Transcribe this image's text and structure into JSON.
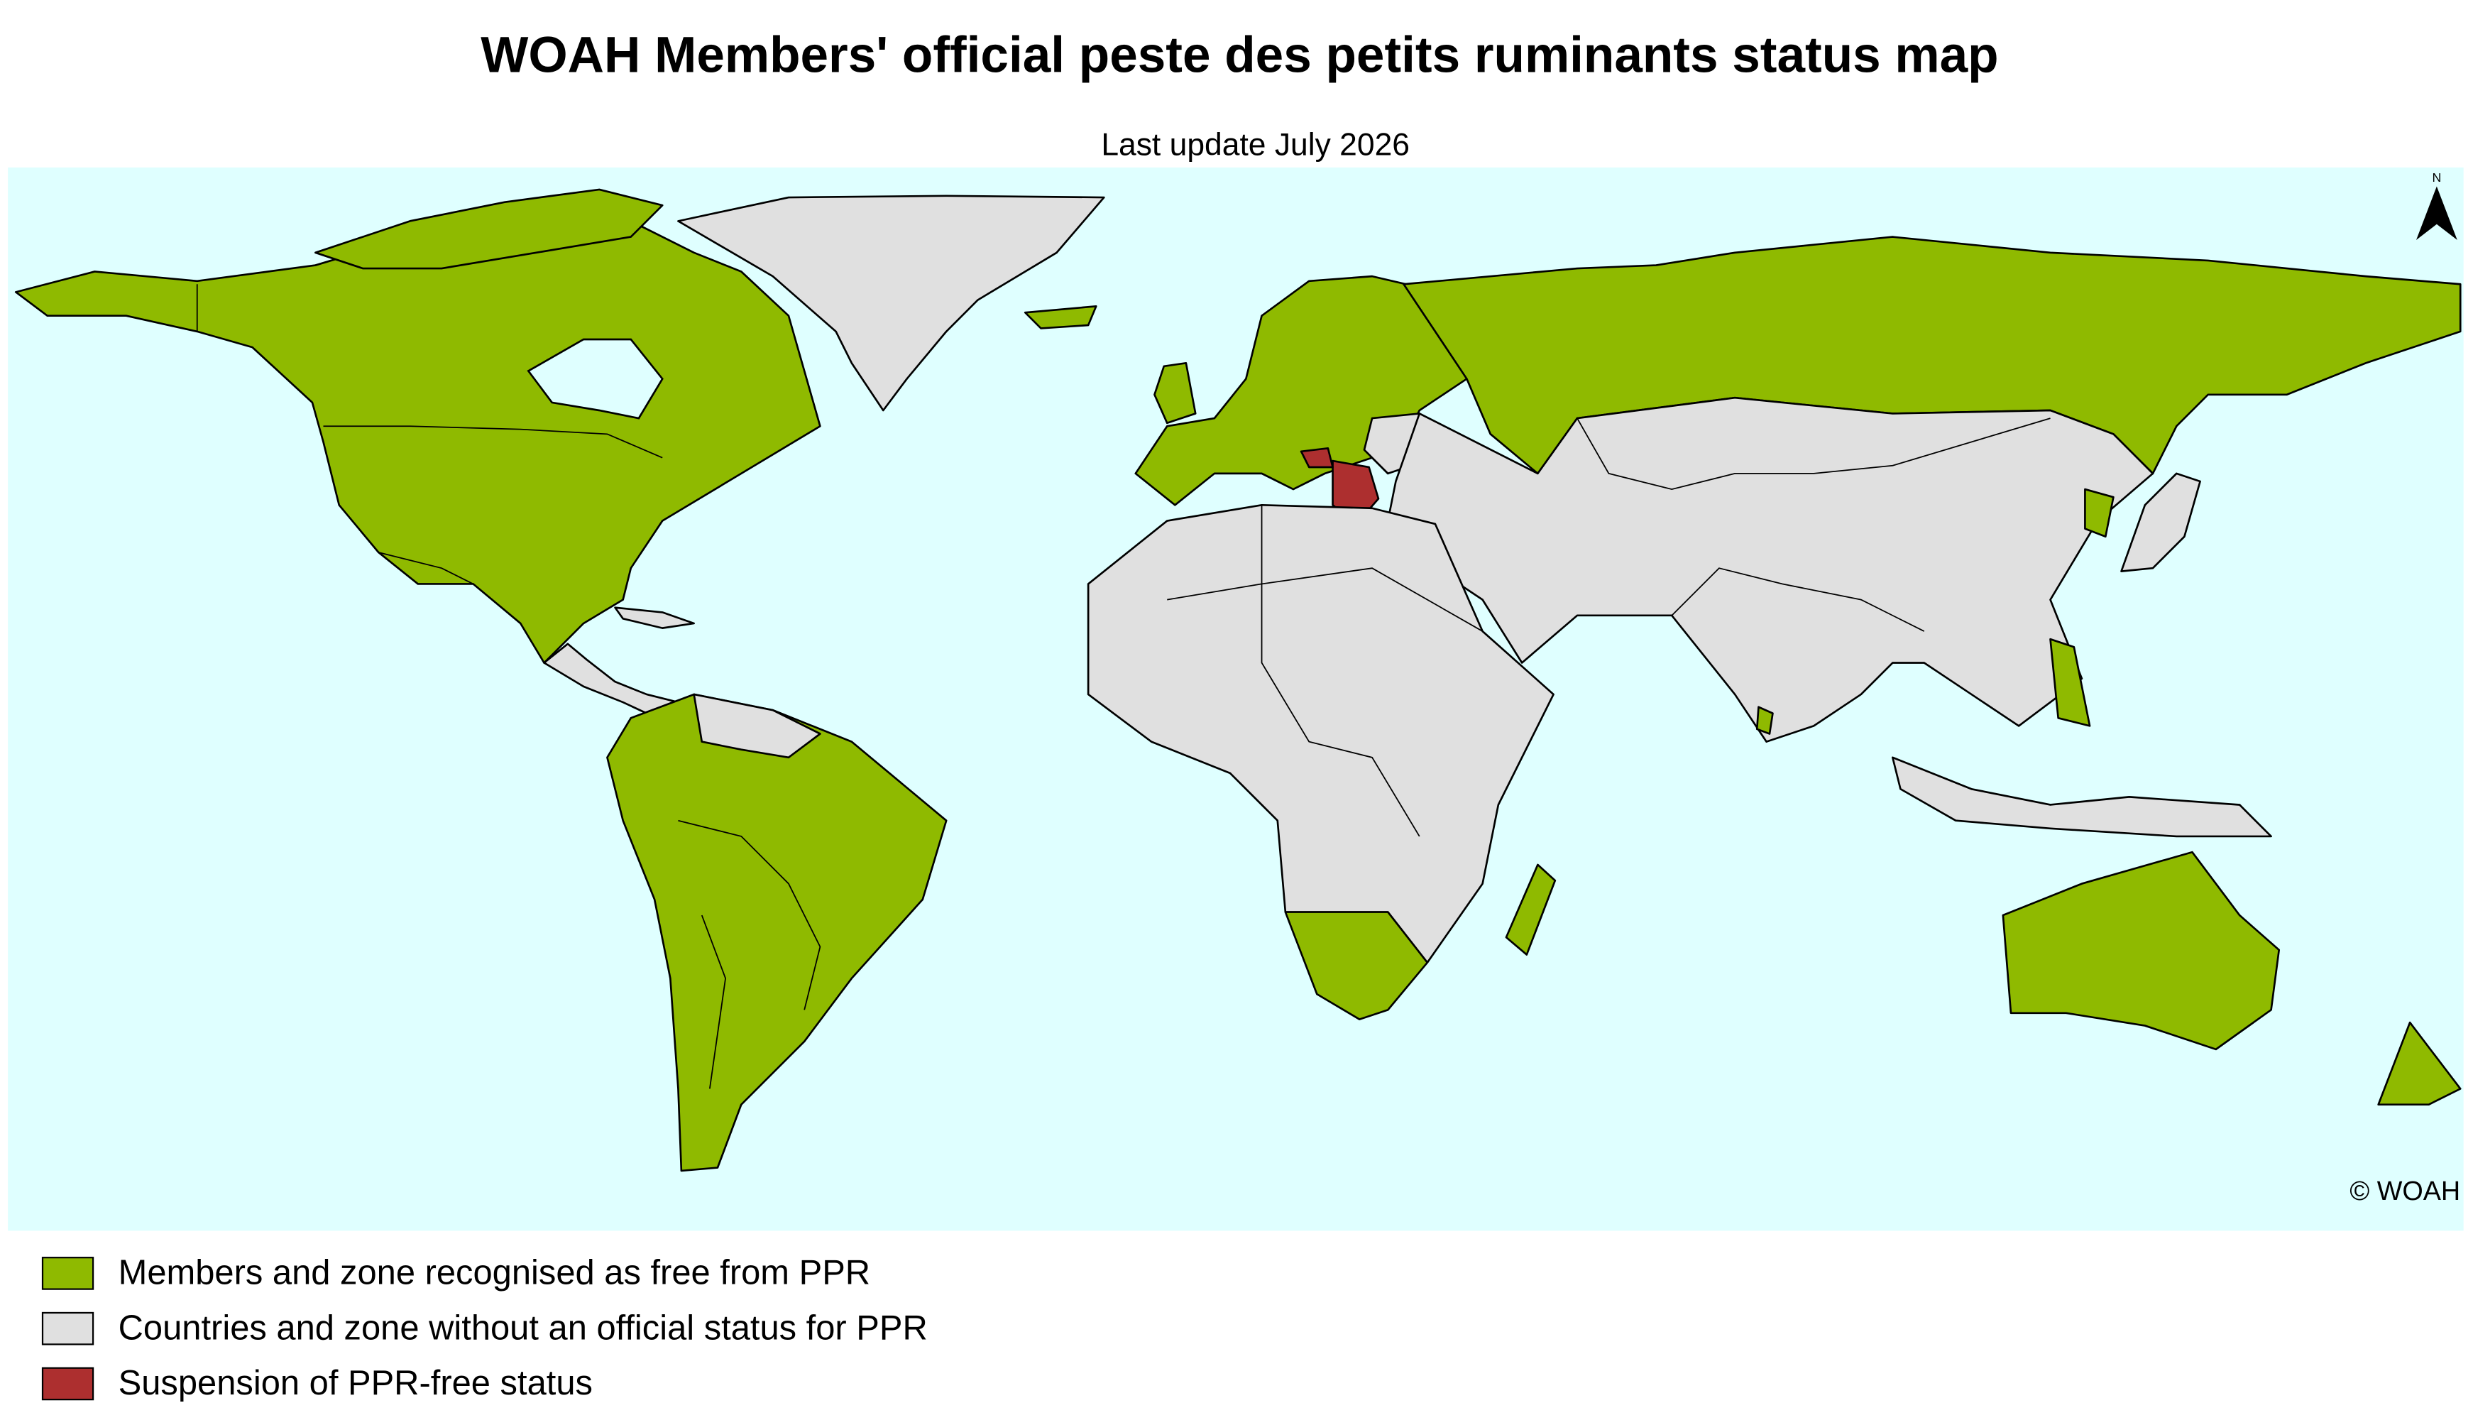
{
  "header": {
    "title": "WOAH Members' official peste des petits ruminants status map",
    "subtitle": "Last update July 2026"
  },
  "map": {
    "north_label": "N",
    "copyright": "© WOAH"
  },
  "legend": {
    "items": [
      {
        "label": "Members and zone recognised as free from PPR",
        "color": "#8fba00"
      },
      {
        "label": "Countries and zone without an official status for PPR",
        "color": "#e0e0e0"
      },
      {
        "label": "Suspension of PPR-free status",
        "color": "#ad2f2f"
      }
    ]
  }
}
